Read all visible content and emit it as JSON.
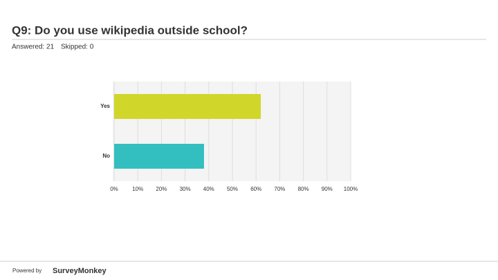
{
  "chart_data": {
    "type": "bar",
    "orientation": "horizontal",
    "title": "Q9: Do you use wikipedia outside school?",
    "annotations": [
      "Answered: 21",
      "Skipped: 0"
    ],
    "footer": [
      "Powered by",
      "SurveyMonkey"
    ],
    "categories": [
      "Yes",
      "No"
    ],
    "values": [
      62,
      38
    ],
    "colors": [
      "#d0d62a",
      "#33bfc0"
    ],
    "xlim": [
      0,
      100
    ],
    "xticks": [
      {
        "value": 0,
        "label": "0%"
      },
      {
        "value": 10,
        "label": "10%"
      },
      {
        "value": 20,
        "label": "20%"
      },
      {
        "value": 30,
        "label": "30%"
      },
      {
        "value": 40,
        "label": "40%"
      },
      {
        "value": 50,
        "label": "50%"
      },
      {
        "value": 60,
        "label": "60%"
      },
      {
        "value": 70,
        "label": "70%"
      },
      {
        "value": 80,
        "label": "80%"
      },
      {
        "value": 90,
        "label": "90%"
      },
      {
        "value": 100,
        "label": "100%"
      }
    ],
    "grid": true
  }
}
